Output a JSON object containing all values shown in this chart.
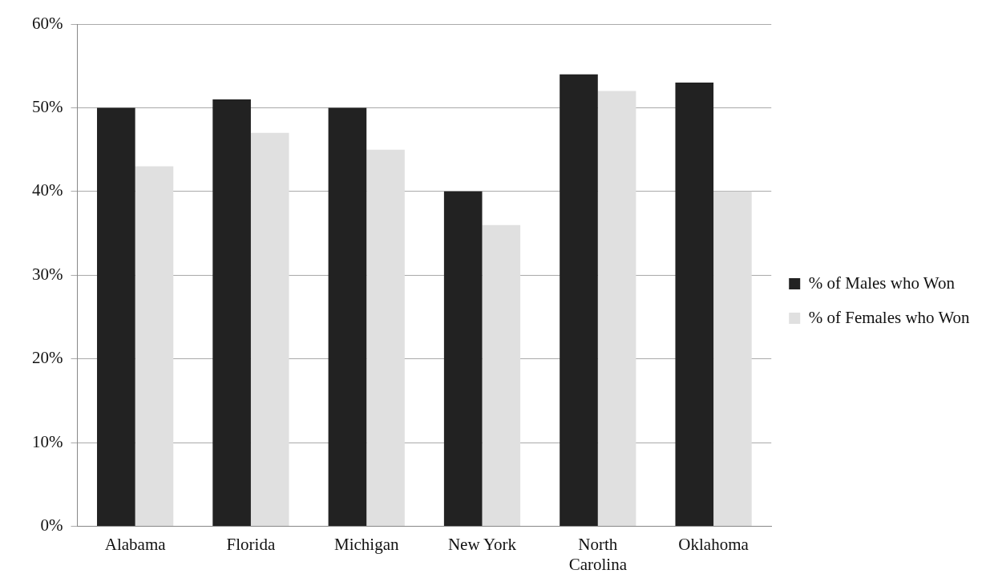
{
  "chart_data": {
    "type": "bar",
    "categories": [
      "Alabama",
      "Florida",
      "Michigan",
      "New York",
      "North Carolina",
      "Oklahoma"
    ],
    "series": [
      {
        "name": "% of Males who Won",
        "color": "#222222",
        "values": [
          50,
          51,
          50,
          40,
          54,
          53
        ]
      },
      {
        "name": "% of Females who Won",
        "color": "#e0e0e0",
        "values": [
          43,
          47,
          45,
          36,
          52,
          40
        ]
      }
    ],
    "ylim": [
      0,
      60
    ],
    "yticks": [
      {
        "value": 0,
        "label": "0%"
      },
      {
        "value": 10,
        "label": "10%"
      },
      {
        "value": 20,
        "label": "20%"
      },
      {
        "value": 30,
        "label": "30%"
      },
      {
        "value": 40,
        "label": "40%"
      },
      {
        "value": 50,
        "label": "50%"
      },
      {
        "value": 60,
        "label": "60%"
      }
    ],
    "grid": "y",
    "legend": "right"
  }
}
